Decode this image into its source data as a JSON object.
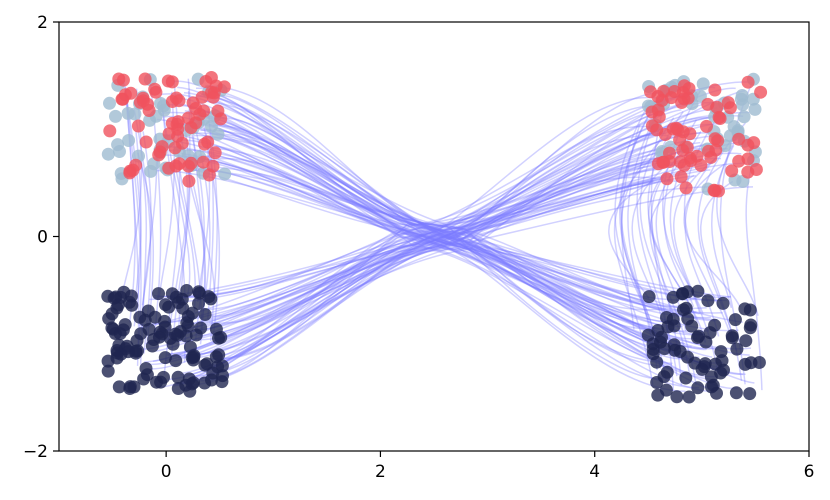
{
  "chart_data": {
    "type": "scatter",
    "title": "",
    "xlabel": "",
    "ylabel": "",
    "xlim": [
      -1,
      6
    ],
    "ylim": [
      -2,
      2
    ],
    "xticks": [
      0,
      2,
      4,
      6
    ],
    "yticks": [
      -2,
      0,
      2
    ],
    "xtick_labels": [
      "0",
      "2",
      "4",
      "6"
    ],
    "ytick_labels": [
      "−2",
      "0",
      "2"
    ],
    "grid": false,
    "legend": "none",
    "colors": {
      "source_top_red": "#f0535e",
      "source_top_lightblue": "#9fbcd1",
      "source_bottom_navy": "#1f2650",
      "target_top_red": "#f0535e",
      "target_top_lightblue": "#9fbcd1",
      "target_bottom_navy": "#1f2650",
      "flow_lines": "#7b7bff"
    },
    "clusters": [
      {
        "id": "source-top",
        "x_range": [
          -0.55,
          0.55
        ],
        "y_range": [
          0.5,
          1.5
        ],
        "count": 110,
        "mix": [
          "red",
          "lightblue"
        ]
      },
      {
        "id": "source-bottom",
        "x_range": [
          -0.55,
          0.55
        ],
        "y_range": [
          -1.45,
          -0.5
        ],
        "count": 110,
        "mix": [
          "navy"
        ]
      },
      {
        "id": "target-top",
        "x_range": [
          4.5,
          5.55
        ],
        "y_range": [
          0.42,
          1.48
        ],
        "count": 110,
        "mix": [
          "red",
          "lightblue"
        ]
      },
      {
        "id": "target-bottom",
        "x_range": [
          4.5,
          5.55
        ],
        "y_range": [
          -1.5,
          -0.5
        ],
        "count": 70,
        "mix": [
          "navy"
        ]
      }
    ],
    "flows": {
      "top_to_bottom_cross": 55,
      "bottom_to_top_cross": 55,
      "top_to_bottom_same_side": 30,
      "right_side_down": 30,
      "bend_point": [
        2.5,
        0.0
      ]
    }
  }
}
